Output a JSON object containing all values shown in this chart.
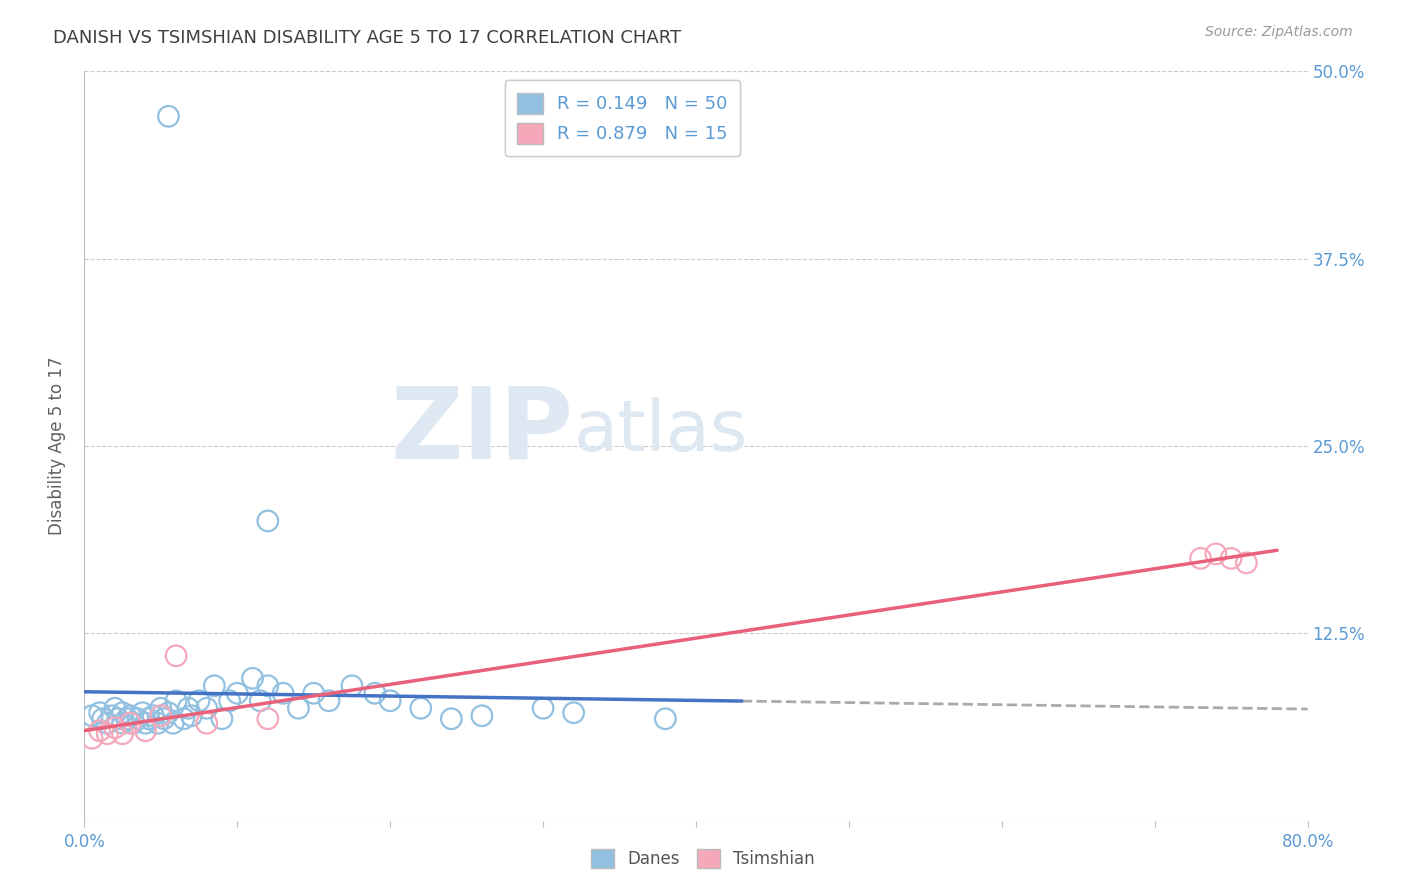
{
  "title": "DANISH VS TSIMSHIAN DISABILITY AGE 5 TO 17 CORRELATION CHART",
  "source": "Source: ZipAtlas.com",
  "ylabel": "Disability Age 5 to 17",
  "xlim": [
    0.0,
    0.8
  ],
  "ylim": [
    0.0,
    0.5
  ],
  "danes_color": "#92C0E0",
  "tsimshian_color": "#F4A8BA",
  "trend_danes_color": "#4472C4",
  "trend_tsim_color": "#E8607A",
  "dashed_color": "#AAAAAA",
  "background_color": "#FFFFFF",
  "grid_color": "#CCCCCC",
  "axis_label_color": "#5B9BD5",
  "title_color": "#404040",
  "watermark_color": "#DDE8F2",
  "danes_points_x": [
    0.005,
    0.01,
    0.012,
    0.015,
    0.018,
    0.02,
    0.022,
    0.025,
    0.025,
    0.028,
    0.03,
    0.032,
    0.035,
    0.038,
    0.04,
    0.042,
    0.045,
    0.048,
    0.05,
    0.052,
    0.055,
    0.058,
    0.06,
    0.065,
    0.068,
    0.07,
    0.075,
    0.08,
    0.085,
    0.09,
    0.095,
    0.1,
    0.11,
    0.115,
    0.12,
    0.13,
    0.14,
    0.15,
    0.16,
    0.175,
    0.19,
    0.2,
    0.22,
    0.24,
    0.26,
    0.3,
    0.32,
    0.38,
    0.12,
    0.055
  ],
  "danes_points_y": [
    0.07,
    0.072,
    0.068,
    0.065,
    0.07,
    0.075,
    0.068,
    0.072,
    0.065,
    0.068,
    0.07,
    0.065,
    0.068,
    0.072,
    0.065,
    0.068,
    0.07,
    0.065,
    0.075,
    0.068,
    0.072,
    0.065,
    0.08,
    0.068,
    0.075,
    0.07,
    0.08,
    0.075,
    0.09,
    0.068,
    0.08,
    0.085,
    0.095,
    0.08,
    0.09,
    0.085,
    0.075,
    0.085,
    0.08,
    0.09,
    0.085,
    0.08,
    0.075,
    0.068,
    0.07,
    0.075,
    0.072,
    0.068,
    0.2,
    0.47
  ],
  "tsim_points_x": [
    0.005,
    0.01,
    0.015,
    0.02,
    0.025,
    0.03,
    0.04,
    0.05,
    0.06,
    0.08,
    0.12,
    0.73,
    0.74,
    0.75,
    0.76
  ],
  "tsim_points_y": [
    0.055,
    0.06,
    0.058,
    0.062,
    0.058,
    0.065,
    0.06,
    0.07,
    0.11,
    0.065,
    0.068,
    0.175,
    0.178,
    0.175,
    0.172
  ],
  "danes_trend_x": [
    0.005,
    0.43
  ],
  "danes_trend_y_slope": 0.028,
  "danes_trend_y_intercept": 0.068,
  "tsim_trend_x_start": 0.005,
  "tsim_trend_x_end": 0.76,
  "tsim_trend_y_slope": 0.16,
  "tsim_trend_y_intercept": 0.052
}
